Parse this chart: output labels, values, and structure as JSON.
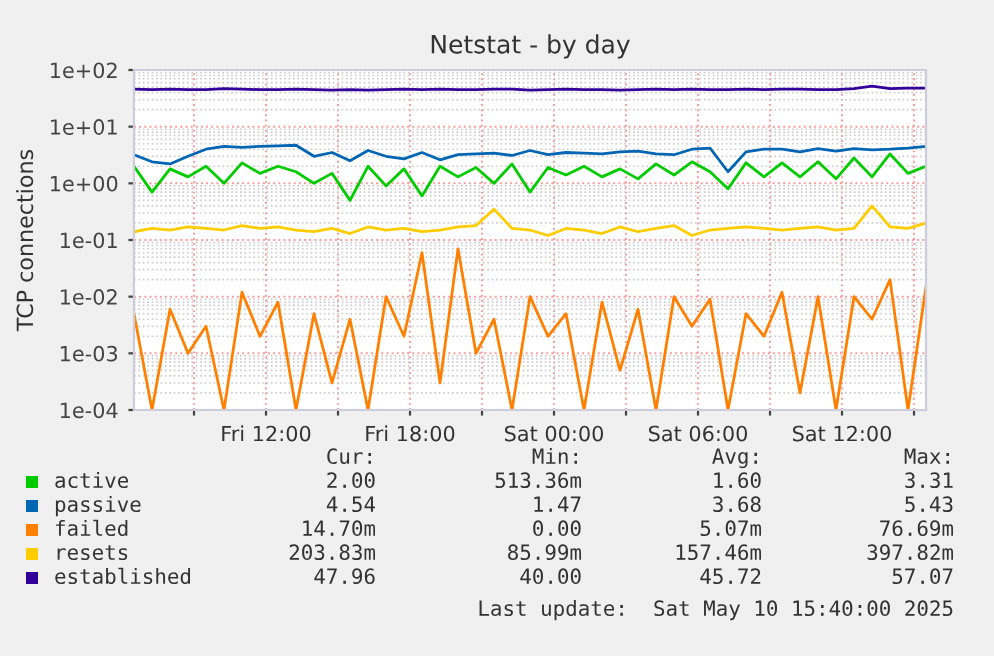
{
  "chart_data": {
    "type": "line",
    "title": "Netstat - by day",
    "ylabel": "TCP connections",
    "log": "y",
    "grid": true,
    "legend": "bottom",
    "marker": "none",
    "line_style": "solid",
    "xlim": [
      "2025-05-09T06:30",
      "2025-05-10T15:30"
    ],
    "xticks": [
      {
        "value": "2025-05-09T09:00",
        "label": null
      },
      {
        "value": "2025-05-09T12:00",
        "label": "Fri 12:00"
      },
      {
        "value": "2025-05-09T15:00",
        "label": null
      },
      {
        "value": "2025-05-09T18:00",
        "label": "Fri 18:00"
      },
      {
        "value": "2025-05-09T21:00",
        "label": null
      },
      {
        "value": "2025-05-10T00:00",
        "label": "Sat 00:00"
      },
      {
        "value": "2025-05-10T03:00",
        "label": null
      },
      {
        "value": "2025-05-10T06:00",
        "label": "Sat 06:00"
      },
      {
        "value": "2025-05-10T09:00",
        "label": null
      },
      {
        "value": "2025-05-10T12:00",
        "label": "Sat 12:00"
      },
      {
        "value": "2025-05-10T15:00",
        "label": null
      }
    ],
    "ylim": [
      0.0001,
      100
    ],
    "yticks": [
      {
        "value": 0.0001,
        "label": "1e-04"
      },
      {
        "value": 0.001,
        "label": "1e-03"
      },
      {
        "value": 0.01,
        "label": "1e-02"
      },
      {
        "value": 0.1,
        "label": "1e-01"
      },
      {
        "value": 1,
        "label": "1e+00"
      },
      {
        "value": 10,
        "label": "1e+01"
      },
      {
        "value": 100,
        "label": "1e+02"
      }
    ],
    "x": [
      "2025-05-09T06:30",
      "2025-05-09T07:15",
      "2025-05-09T08:00",
      "2025-05-09T08:45",
      "2025-05-09T09:30",
      "2025-05-09T10:15",
      "2025-05-09T11:00",
      "2025-05-09T11:45",
      "2025-05-09T12:30",
      "2025-05-09T13:15",
      "2025-05-09T14:00",
      "2025-05-09T14:45",
      "2025-05-09T15:30",
      "2025-05-09T16:15",
      "2025-05-09T17:00",
      "2025-05-09T17:45",
      "2025-05-09T18:30",
      "2025-05-09T19:15",
      "2025-05-09T20:00",
      "2025-05-09T20:45",
      "2025-05-09T21:30",
      "2025-05-09T22:15",
      "2025-05-09T23:00",
      "2025-05-09T23:45",
      "2025-05-10T00:30",
      "2025-05-10T01:15",
      "2025-05-10T02:00",
      "2025-05-10T02:45",
      "2025-05-10T03:30",
      "2025-05-10T04:15",
      "2025-05-10T05:00",
      "2025-05-10T05:45",
      "2025-05-10T06:30",
      "2025-05-10T07:15",
      "2025-05-10T08:00",
      "2025-05-10T08:45",
      "2025-05-10T09:30",
      "2025-05-10T10:15",
      "2025-05-10T11:00",
      "2025-05-10T11:45",
      "2025-05-10T12:30",
      "2025-05-10T13:15",
      "2025-05-10T14:00",
      "2025-05-10T14:45",
      "2025-05-10T15:30"
    ],
    "series": [
      {
        "name": "active",
        "color": "#00cc00",
        "values": [
          2,
          0.7,
          1.8,
          1.3,
          2,
          1,
          2.3,
          1.5,
          2,
          1.6,
          1,
          1.5,
          0.5,
          2,
          0.9,
          1.8,
          0.6,
          2,
          1.3,
          1.9,
          1,
          2.2,
          0.7,
          1.9,
          1.4,
          2,
          1.3,
          1.8,
          1.2,
          2.2,
          1.4,
          2.4,
          1.6,
          0.8,
          2.3,
          1.3,
          2.3,
          1.3,
          2.4,
          1.2,
          2.8,
          1.3,
          3.3,
          1.5,
          2
        ]
      },
      {
        "name": "passive",
        "color": "#0066b3",
        "values": [
          3.2,
          2.4,
          2.2,
          3,
          4,
          4.5,
          4.3,
          4.5,
          4.6,
          4.7,
          3,
          3.5,
          2.5,
          3.8,
          3,
          2.7,
          3.5,
          2.6,
          3.2,
          3.3,
          3.4,
          3.1,
          3.8,
          3.2,
          3.5,
          3.4,
          3.3,
          3.6,
          3.7,
          3.3,
          3.2,
          4,
          4.2,
          1.6,
          3.6,
          4,
          4,
          3.6,
          4.1,
          3.7,
          4.1,
          3.9,
          4,
          4.2,
          4.5
        ]
      },
      {
        "name": "failed",
        "color": "#ff8000",
        "values": [
          0.005,
          0.0001,
          0.006,
          0.001,
          0.003,
          0.0001,
          0.012,
          0.002,
          0.008,
          0.0001,
          0.005,
          0.0003,
          0.004,
          0.0001,
          0.01,
          0.002,
          0.06,
          0.0003,
          0.07,
          0.001,
          0.004,
          0.0001,
          0.01,
          0.002,
          0.005,
          0.0001,
          0.008,
          0.0005,
          0.006,
          0.0001,
          0.01,
          0.003,
          0.009,
          0.0001,
          0.005,
          0.002,
          0.012,
          0.0002,
          0.01,
          0.0001,
          0.01,
          0.004,
          0.02,
          0.0001,
          0.015
        ]
      },
      {
        "name": "resets",
        "color": "#ffcc00",
        "values": [
          0.14,
          0.16,
          0.15,
          0.17,
          0.16,
          0.15,
          0.18,
          0.16,
          0.17,
          0.15,
          0.14,
          0.16,
          0.13,
          0.17,
          0.15,
          0.16,
          0.14,
          0.15,
          0.17,
          0.18,
          0.35,
          0.16,
          0.15,
          0.12,
          0.16,
          0.15,
          0.13,
          0.17,
          0.14,
          0.16,
          0.18,
          0.12,
          0.15,
          0.16,
          0.17,
          0.16,
          0.15,
          0.16,
          0.17,
          0.15,
          0.16,
          0.4,
          0.17,
          0.16,
          0.2
        ]
      },
      {
        "name": "established",
        "color": "#330099",
        "values": [
          46,
          45,
          46,
          45,
          45,
          47,
          46,
          45,
          45,
          46,
          45,
          44,
          45,
          44,
          45,
          46,
          45,
          46,
          45,
          45,
          46,
          46,
          44,
          45,
          46,
          45,
          45,
          44,
          45,
          46,
          45,
          46,
          45,
          45,
          46,
          45,
          46,
          46,
          45,
          45,
          47,
          52,
          47,
          48,
          48
        ]
      }
    ],
    "annotations": [
      "Cur: Min: Avg: Max:",
      "2.00 513.36m 1.60 3.31",
      "4.54 1.47 3.68 5.43",
      "14.70m 0.00 5.07m 76.69m",
      "203.83m 85.99m 157.46m 397.82m",
      "47.96 40.00 45.72 57.07",
      "Last update:  Sat May 10 15:40:00 2025"
    ]
  }
}
